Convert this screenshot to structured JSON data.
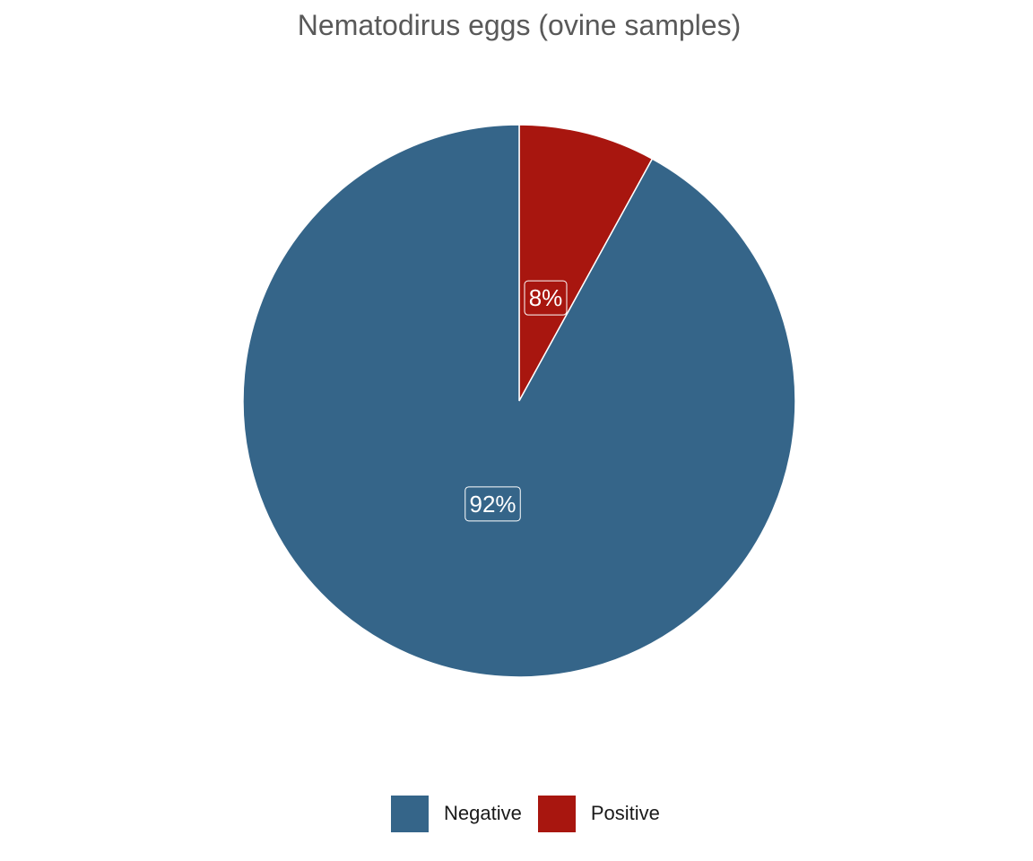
{
  "chart_data": {
    "type": "pie",
    "title": "Nematodirus eggs (ovine samples)",
    "categories": [
      "Negative",
      "Positive"
    ],
    "values": [
      92,
      8
    ],
    "labels": [
      "92%",
      "8%"
    ],
    "colors": [
      "#356589",
      "#a8160f"
    ],
    "legend": {
      "placement": "bottom",
      "entries": [
        "Negative",
        "Positive"
      ]
    }
  }
}
